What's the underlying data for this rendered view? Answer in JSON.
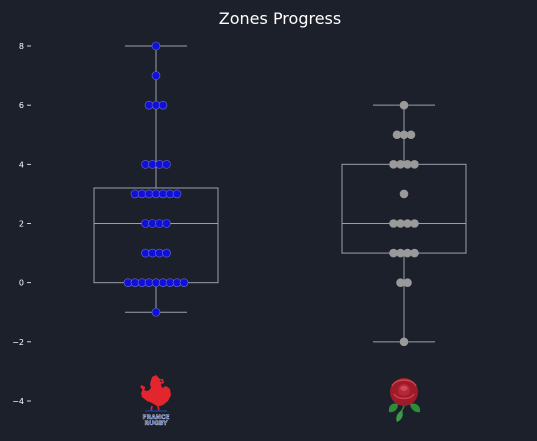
{
  "chart_data": {
    "type": "box",
    "title": "Zones Progress",
    "xlabel": "",
    "ylabel": "",
    "ylim": [
      -4.6,
      8.4
    ],
    "yticks": [
      -4,
      -2,
      0,
      2,
      4,
      6,
      8
    ],
    "ytick_labels": [
      "−4",
      "−2",
      "0",
      "2",
      "4",
      "6",
      "8"
    ],
    "grid": false,
    "legend": "none",
    "colors": {
      "background": "#1c202b",
      "box": "#9aa0a8",
      "text": "#ffffff",
      "france_points": "#1010d8",
      "france_point_edge": "#6a6ad8",
      "england_points": "#9a9a9a"
    },
    "series": [
      {
        "logo": "france-rugby-rooster-icon",
        "logo_text": [
          "FRANCE",
          "RUGBY"
        ],
        "box": {
          "whisker_low": -1,
          "q1": 0,
          "median": 2,
          "q3": 3.2,
          "whisker_high": 8
        },
        "points": [
          8,
          7,
          6,
          6,
          6,
          4,
          4,
          4,
          4,
          3,
          3,
          3,
          3,
          3,
          3,
          3,
          2,
          2,
          2,
          2,
          1,
          1,
          1,
          1,
          0,
          0,
          0,
          0,
          0,
          0,
          0,
          0,
          0,
          -1
        ]
      },
      {
        "logo": "england-rugby-rose-icon",
        "box": {
          "whisker_low": -2,
          "q1": 1,
          "median": 2,
          "q3": 4,
          "whisker_high": 6
        },
        "points": [
          6,
          5,
          5,
          5,
          4,
          4,
          4,
          4,
          3,
          2,
          2,
          2,
          2,
          1,
          1,
          1,
          1,
          0,
          0,
          -2
        ]
      }
    ]
  }
}
